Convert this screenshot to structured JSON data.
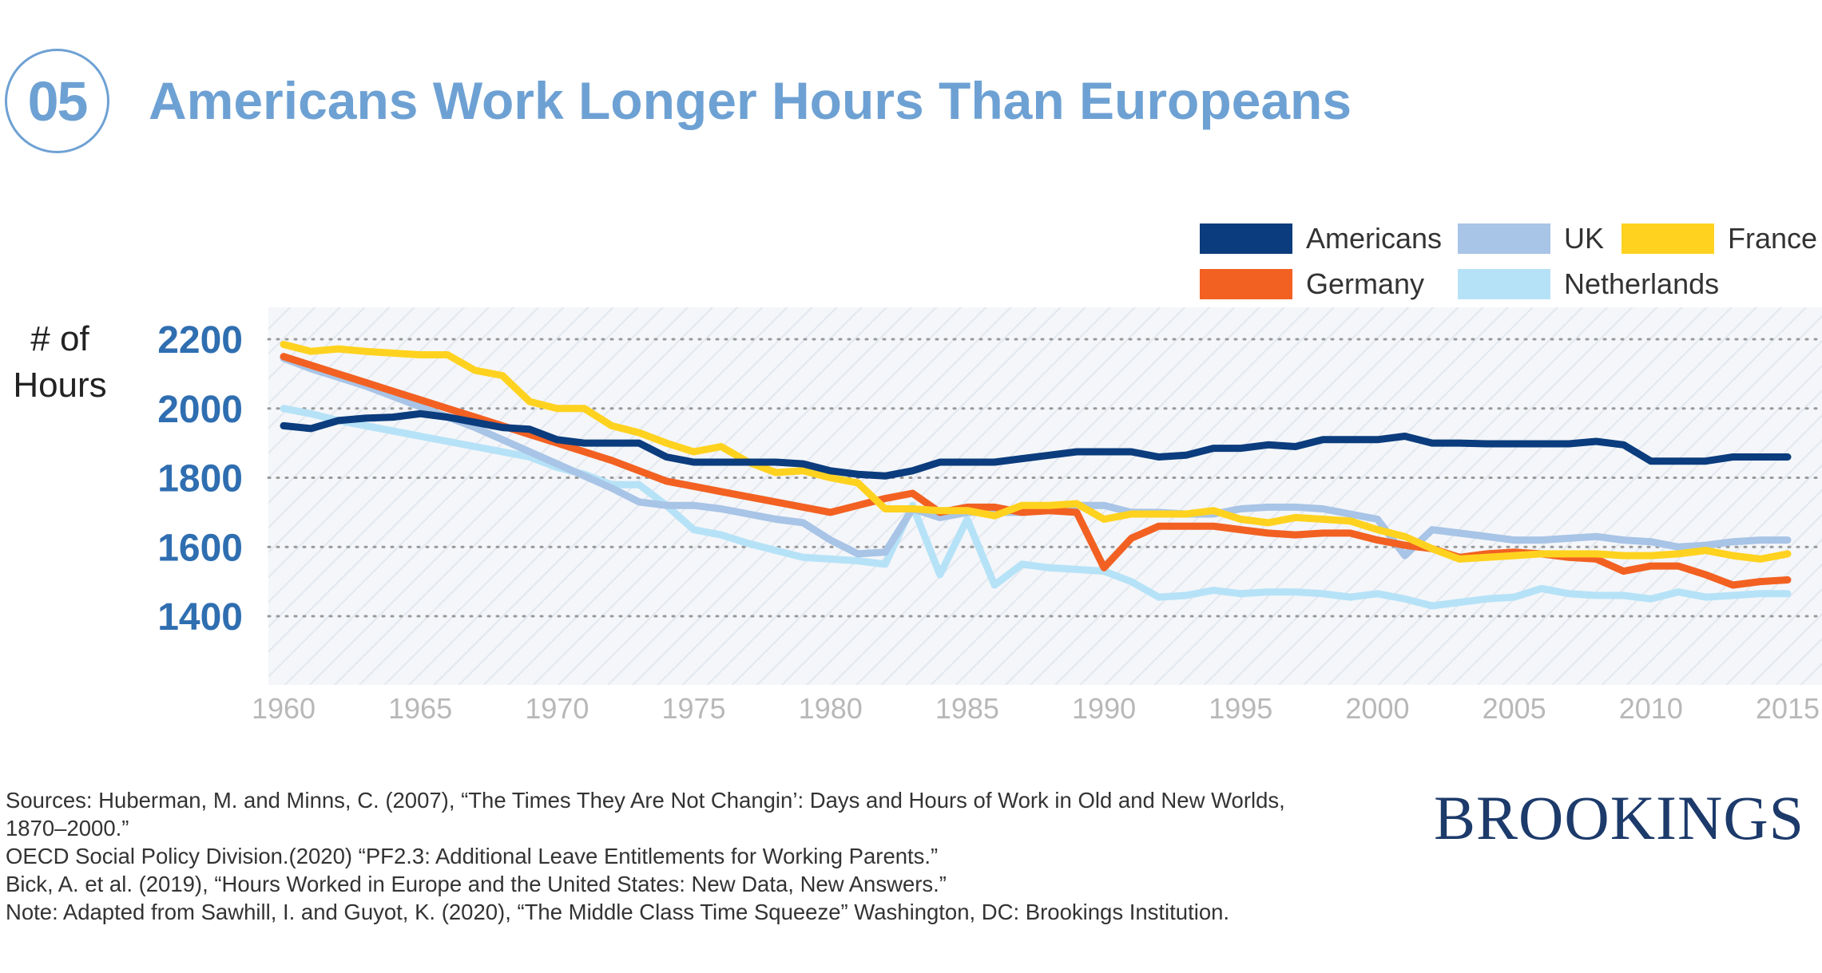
{
  "header": {
    "number": "05",
    "title": "Americans Work Longer Hours Than Europeans"
  },
  "brand": "BROOKINGS",
  "sources": [
    "Sources: Huberman, M. and Minns, C. (2007), “The Times They Are Not Changin’: Days and Hours of Work in Old and New Worlds, 1870–2000.”",
    "OECD Social Policy Division.(2020) “PF2.3: Additional Leave Entitlements for Working Parents.”",
    "Bick, A. et al. (2019), “Hours Worked in Europe and the United States: New Data, New Answers.”",
    "Note: Adapted from Sawhill, I. and Guyot, K. (2020), “The Middle Class Time Squeeze” Washington, DC: Brookings Institution."
  ],
  "colors": {
    "accent": "#6ea1d3",
    "axis_tick": "#2f6eb0",
    "grid": "#999999",
    "americans": "#0b3c7d",
    "uk": "#a8c4e6",
    "france": "#ffd21f",
    "germany": "#f26122",
    "netherlands": "#b6e2f7"
  },
  "chart_data": {
    "type": "line",
    "ylabel": "# of Hours",
    "xlabel": "",
    "xlim": [
      1960,
      2015
    ],
    "ylim": [
      1300,
      2200
    ],
    "yticks": [
      1400,
      1600,
      1800,
      2000,
      2200
    ],
    "xticks": [
      1960,
      1965,
      1970,
      1975,
      1980,
      1985,
      1990,
      1995,
      2000,
      2005,
      2010,
      2015
    ],
    "grid": "horizontal dotted",
    "legend_position": "top-right",
    "x": [
      1960,
      1961,
      1962,
      1963,
      1964,
      1965,
      1966,
      1967,
      1968,
      1969,
      1970,
      1971,
      1972,
      1973,
      1974,
      1975,
      1976,
      1977,
      1978,
      1979,
      1980,
      1981,
      1982,
      1983,
      1984,
      1985,
      1986,
      1987,
      1988,
      1989,
      1990,
      1991,
      1992,
      1993,
      1994,
      1995,
      1996,
      1997,
      1998,
      1999,
      2000,
      2001,
      2002,
      2003,
      2004,
      2005,
      2006,
      2007,
      2008,
      2009,
      2010,
      2011,
      2012,
      2013,
      2014,
      2015
    ],
    "series": [
      {
        "name": "Americans",
        "color_key": "americans",
        "values": [
          1950,
          1942,
          1965,
          1972,
          1975,
          1985,
          1975,
          1960,
          1945,
          1940,
          1910,
          1900,
          1900,
          1900,
          1860,
          1845,
          1845,
          1845,
          1845,
          1840,
          1820,
          1810,
          1805,
          1820,
          1845,
          1845,
          1845,
          1855,
          1865,
          1875,
          1875,
          1875,
          1860,
          1865,
          1885,
          1885,
          1895,
          1890,
          1910,
          1910,
          1910,
          1920,
          1900,
          1900,
          1898,
          1898,
          1898,
          1898,
          1905,
          1895,
          1848,
          1848,
          1848,
          1860,
          1860,
          1860
        ]
      },
      {
        "name": "UK",
        "color_key": "uk",
        "values": [
          2145,
          2115,
          2090,
          2065,
          2035,
          2005,
          1975,
          1945,
          1910,
          1875,
          1840,
          1805,
          1770,
          1730,
          1720,
          1720,
          1710,
          1695,
          1680,
          1670,
          1620,
          1580,
          1585,
          1710,
          1685,
          1700,
          1700,
          1700,
          1715,
          1720,
          1720,
          1700,
          1700,
          1695,
          1695,
          1710,
          1715,
          1715,
          1710,
          1695,
          1680,
          1575,
          1650,
          1640,
          1630,
          1620,
          1620,
          1625,
          1630,
          1620,
          1615,
          1600,
          1605,
          1615,
          1620,
          1620
        ]
      },
      {
        "name": "France",
        "color_key": "france",
        "values": [
          2185,
          2165,
          2172,
          2165,
          2160,
          2155,
          2155,
          2110,
          2095,
          2020,
          2000,
          2000,
          1950,
          1930,
          1900,
          1875,
          1890,
          1845,
          1815,
          1820,
          1800,
          1785,
          1710,
          1710,
          1705,
          1705,
          1690,
          1720,
          1720,
          1725,
          1680,
          1695,
          1695,
          1695,
          1705,
          1680,
          1670,
          1685,
          1680,
          1675,
          1650,
          1630,
          1595,
          1565,
          1570,
          1575,
          1580,
          1580,
          1580,
          1575,
          1575,
          1580,
          1590,
          1575,
          1565,
          1580
        ]
      },
      {
        "name": "Germany",
        "color_key": "germany",
        "values": [
          2150,
          2125,
          2100,
          2075,
          2050,
          2025,
          2000,
          1975,
          1950,
          1925,
          1900,
          1875,
          1850,
          1820,
          1790,
          1775,
          1760,
          1745,
          1730,
          1715,
          1700,
          1720,
          1740,
          1755,
          1700,
          1715,
          1715,
          1700,
          1705,
          1700,
          1540,
          1625,
          1660,
          1660,
          1660,
          1650,
          1640,
          1635,
          1640,
          1640,
          1620,
          1605,
          1595,
          1570,
          1580,
          1585,
          1580,
          1570,
          1565,
          1530,
          1545,
          1545,
          1520,
          1490,
          1500,
          1505
        ]
      },
      {
        "name": "Netherlands",
        "color_key": "netherlands",
        "values": [
          2000,
          1985,
          1965,
          1950,
          1935,
          1920,
          1905,
          1890,
          1875,
          1860,
          1830,
          1810,
          1780,
          1780,
          1720,
          1650,
          1635,
          1610,
          1590,
          1570,
          1565,
          1560,
          1550,
          1720,
          1520,
          1680,
          1490,
          1550,
          1540,
          1535,
          1530,
          1500,
          1455,
          1460,
          1475,
          1465,
          1470,
          1470,
          1465,
          1455,
          1465,
          1450,
          1430,
          1440,
          1450,
          1455,
          1480,
          1465,
          1460,
          1460,
          1450,
          1470,
          1455,
          1460,
          1465,
          1465
        ]
      }
    ]
  }
}
